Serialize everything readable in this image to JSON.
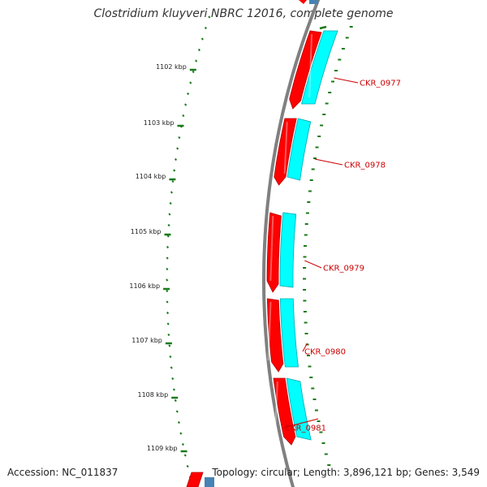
{
  "title": "Clostridium kluyveri NBRC 12016, complete genome",
  "footer": {
    "accession": "Accession: NC_011837",
    "summary": "Topology: circular; Length: 3,896,121 bp; Genes: 3,549"
  },
  "ticks": [
    "1102 kbp",
    "1103 kbp",
    "1104 kbp",
    "1105 kbp",
    "1106 kbp",
    "1107 kbp",
    "1108 kbp",
    "1109 kbp"
  ],
  "genes": [
    {
      "name": "CKR_0977"
    },
    {
      "name": "CKR_0978"
    },
    {
      "name": "CKR_0979"
    },
    {
      "name": "CKR_0980"
    },
    {
      "name": "CKR_0981"
    }
  ],
  "colors": {
    "cds": "#ff0000",
    "cds_dark": "#b40000",
    "feature": "#00ffff",
    "feature_dark": "#00a8b0",
    "backbone": "#808080",
    "tick": "#1a7a1a",
    "gene_label": "#cc0000",
    "edge_feature": "#4682b4"
  }
}
